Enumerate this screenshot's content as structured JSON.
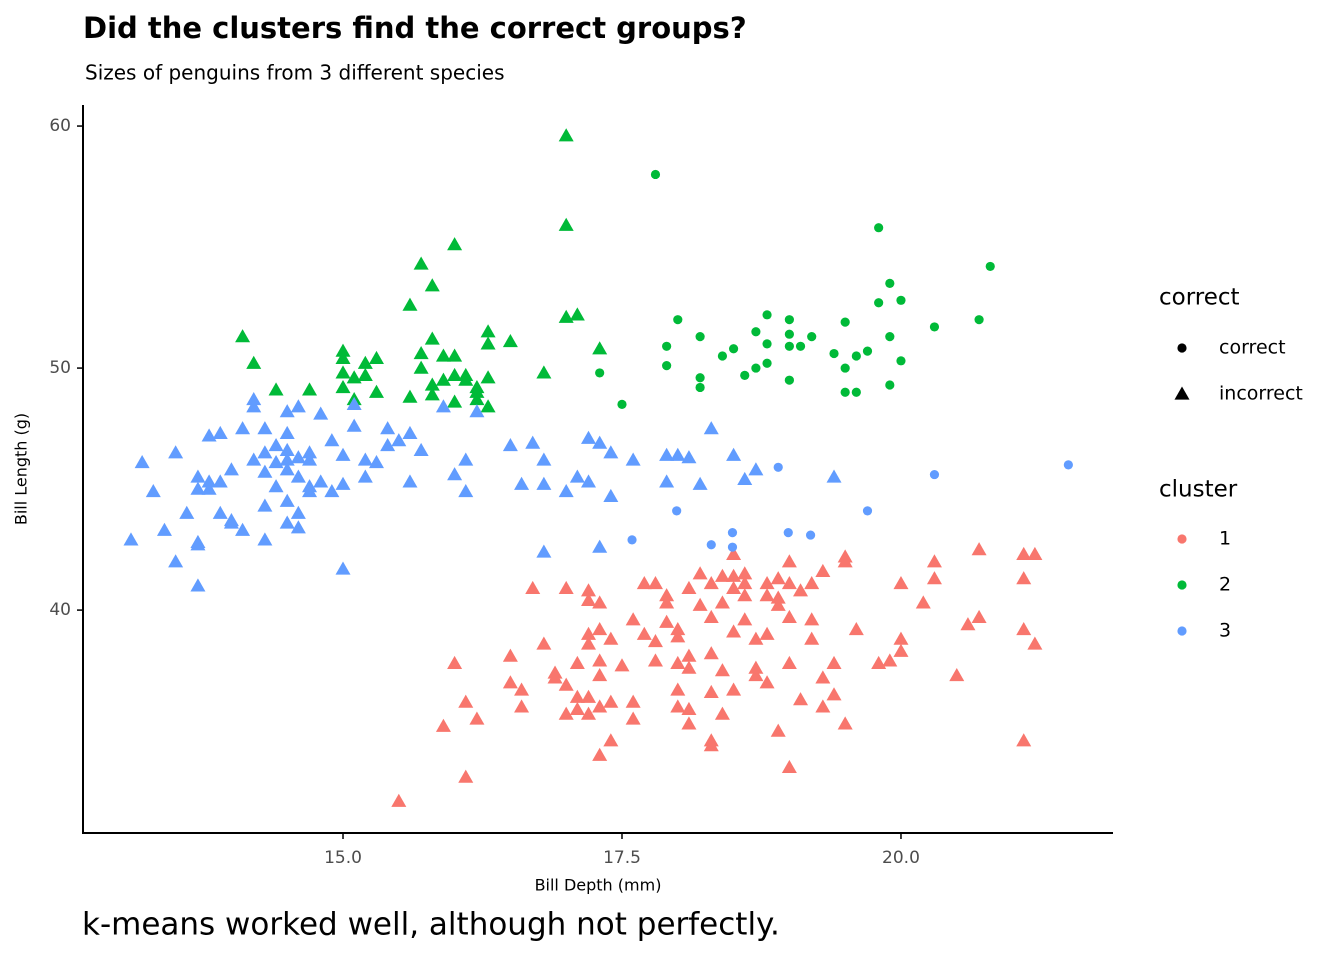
{
  "chart_data": {
    "type": "scatter",
    "title": "Did the clusters find the correct groups?",
    "subtitle": "Sizes of penguins from 3 different species",
    "x_label": "Bill Depth (mm)",
    "y_label": "Bill Length (g)",
    "caption": "k-means worked well, although not perfectly.",
    "xlim": [
      12.67,
      21.9
    ],
    "ylim": [
      30.79,
      60.87
    ],
    "xticks": [
      {
        "value": 15,
        "label": "15.0"
      },
      {
        "value": 17.5,
        "label": "17.5"
      },
      {
        "value": 20,
        "label": "20.0"
      }
    ],
    "yticks": [
      40,
      50,
      60
    ],
    "legends": [
      {
        "title": "correct",
        "items": [
          {
            "label": "correct",
            "shape": "circle"
          },
          {
            "label": "incorrect",
            "shape": "triangle"
          }
        ]
      },
      {
        "title": "cluster",
        "items": [
          {
            "label": "1",
            "color": "#F8766D"
          },
          {
            "label": "2",
            "color": "#00BA38"
          },
          {
            "label": "3",
            "color": "#619CFF"
          }
        ]
      }
    ],
    "series": [
      {
        "color": "#F8766D",
        "shape": "triangle",
        "x": [
          15.5,
          15.9,
          16.0,
          16.1,
          16.1,
          16.2,
          16.5,
          16.5,
          16.6,
          16.6,
          16.7,
          16.8,
          16.9,
          16.9,
          17.0,
          17.0,
          17.0,
          17.1,
          17.1,
          17.1,
          17.2,
          17.2,
          17.2,
          17.2,
          17.2,
          17.2,
          17.3,
          17.3,
          17.3,
          17.3,
          17.3,
          17.3,
          17.4,
          17.4,
          17.4,
          17.5,
          17.6,
          17.6,
          17.6,
          17.7,
          17.7,
          17.8,
          17.8,
          17.8,
          17.9,
          17.9,
          17.9,
          18.0,
          18.0,
          18.0,
          18.0,
          18.0,
          18.1,
          18.1,
          18.1,
          18.1,
          18.1,
          18.2,
          18.2,
          18.3,
          18.3,
          18.3,
          18.3,
          18.3,
          18.3,
          18.4,
          18.4,
          18.4,
          18.4,
          18.5,
          18.5,
          18.5,
          18.5,
          18.6,
          18.6,
          18.6,
          18.6,
          18.7,
          18.7,
          18.7,
          18.8,
          18.8,
          18.8,
          18.8,
          18.9,
          18.9,
          18.9,
          18.9,
          19.0,
          19.0,
          19.0,
          19.0,
          19.1,
          19.1,
          19.2,
          19.2,
          19.2,
          19.3,
          19.3,
          19.3,
          19.4,
          19.4,
          19.5,
          19.5,
          19.6,
          19.8,
          19.9,
          20.0,
          20.0,
          20.0,
          20.2,
          20.3,
          20.5,
          20.6,
          20.7,
          20.7,
          21.1,
          21.1,
          21.1,
          21.1,
          21.2,
          21.2,
          19.5,
          20.3,
          19.0,
          18.5
        ],
        "values": [
          32.1,
          35.2,
          37.8,
          33.1,
          36.2,
          35.5,
          38.1,
          37.0,
          36.7,
          36.0,
          40.9,
          38.6,
          37.4,
          37.2,
          36.9,
          40.9,
          35.7,
          35.9,
          36.4,
          37.8,
          38.6,
          39.0,
          40.4,
          40.8,
          36.4,
          35.7,
          37.9,
          39.2,
          40.3,
          37.3,
          36.0,
          34.0,
          34.6,
          36.2,
          38.8,
          37.7,
          39.6,
          36.2,
          35.5,
          39.0,
          41.1,
          41.1,
          38.7,
          37.9,
          40.6,
          40.3,
          39.5,
          38.9,
          39.2,
          37.8,
          36.7,
          36.0,
          35.9,
          35.3,
          37.6,
          38.1,
          40.9,
          41.5,
          40.2,
          39.7,
          41.1,
          38.2,
          36.6,
          34.6,
          34.4,
          41.4,
          40.3,
          37.5,
          35.7,
          41.4,
          40.9,
          39.1,
          36.7,
          41.5,
          41.1,
          40.6,
          39.6,
          38.8,
          37.3,
          37.6,
          41.1,
          40.6,
          39.0,
          37.0,
          40.2,
          41.3,
          40.5,
          35.0,
          39.7,
          41.1,
          37.8,
          33.5,
          40.8,
          36.3,
          41.1,
          39.6,
          38.8,
          41.6,
          37.2,
          36.0,
          37.8,
          36.5,
          42.2,
          35.3,
          39.2,
          37.8,
          37.9,
          41.1,
          38.8,
          38.3,
          40.3,
          41.3,
          37.3,
          39.4,
          42.5,
          39.7,
          42.3,
          41.3,
          39.2,
          34.6,
          38.6,
          42.3,
          42.0,
          42.0,
          42.0,
          42.3
        ]
      },
      {
        "color": "#00BA38",
        "shape": "circle",
        "x": [
          17.3,
          17.5,
          17.8,
          17.9,
          17.9,
          18.0,
          18.2,
          18.2,
          18.2,
          18.4,
          18.5,
          18.6,
          18.7,
          18.7,
          18.8,
          18.8,
          18.8,
          19.0,
          19.0,
          19.0,
          19.0,
          19.1,
          19.2,
          19.4,
          19.5,
          19.5,
          19.5,
          19.6,
          19.6,
          19.7,
          19.8,
          19.8,
          19.9,
          19.9,
          19.9,
          20.0,
          20.0,
          20.3,
          20.7,
          20.8
        ],
        "values": [
          49.8,
          48.5,
          58.0,
          50.9,
          50.1,
          52.0,
          51.3,
          49.6,
          49.2,
          50.5,
          50.8,
          49.7,
          51.5,
          50.0,
          52.2,
          51.0,
          50.2,
          52.0,
          51.4,
          50.9,
          49.5,
          50.9,
          51.3,
          50.6,
          51.9,
          50.0,
          49.0,
          50.5,
          49.0,
          50.7,
          55.8,
          52.7,
          53.5,
          51.3,
          49.3,
          52.8,
          50.3,
          51.7,
          52.0,
          54.2
        ]
      },
      {
        "color": "#00BA38",
        "shape": "triangle",
        "x": [
          14.1,
          14.2,
          14.4,
          14.7,
          15.0,
          15.0,
          15.0,
          15.0,
          15.1,
          15.1,
          15.2,
          15.2,
          15.3,
          15.3,
          15.6,
          15.7,
          15.8,
          15.8,
          15.7,
          15.8,
          15.9,
          16.0,
          16.0,
          16.0,
          16.1,
          16.1,
          16.2,
          16.2,
          16.2,
          16.0,
          16.3,
          16.3,
          16.3,
          16.3,
          16.5,
          16.8,
          17.0,
          17.0,
          17.0,
          17.1,
          17.3,
          15.9,
          15.7,
          15.6,
          15.8
        ],
        "values": [
          51.3,
          50.2,
          49.1,
          49.1,
          50.7,
          50.4,
          49.8,
          49.2,
          49.6,
          48.7,
          50.2,
          49.7,
          50.4,
          49.0,
          52.6,
          54.3,
          53.4,
          51.2,
          50.0,
          49.3,
          49.5,
          55.1,
          50.5,
          49.7,
          49.5,
          49.7,
          49.2,
          49.0,
          48.7,
          48.6,
          51.5,
          51.0,
          49.6,
          48.4,
          51.1,
          49.8,
          59.6,
          55.9,
          52.1,
          52.2,
          50.8,
          50.5,
          50.6,
          48.8,
          48.9
        ]
      },
      {
        "color": "#619CFF",
        "shape": "circle",
        "x": [
          17.59,
          17.99,
          18.3,
          18.49,
          18.49,
          18.9,
          18.99,
          19.19,
          19.7,
          20.3,
          21.5
        ],
        "values": [
          42.9,
          44.1,
          42.7,
          43.2,
          42.6,
          45.9,
          43.2,
          43.1,
          44.1,
          45.6,
          46.0
        ]
      },
      {
        "color": "#619CFF",
        "shape": "triangle",
        "x": [
          13.1,
          13.2,
          13.3,
          13.4,
          13.5,
          13.5,
          13.6,
          13.7,
          13.7,
          13.7,
          13.7,
          13.7,
          13.8,
          13.8,
          13.8,
          13.9,
          13.9,
          13.9,
          14.0,
          14.0,
          14.0,
          14.1,
          14.1,
          14.2,
          14.2,
          14.2,
          14.3,
          14.3,
          14.3,
          14.3,
          14.3,
          14.4,
          14.4,
          14.4,
          14.5,
          14.5,
          14.5,
          14.5,
          14.5,
          14.5,
          14.5,
          14.6,
          14.6,
          14.6,
          14.6,
          14.6,
          14.7,
          14.7,
          14.7,
          14.7,
          14.8,
          14.8,
          14.9,
          14.9,
          15.0,
          15.0,
          15.0,
          15.1,
          15.2,
          15.2,
          15.3,
          15.4,
          15.4,
          15.5,
          15.6,
          15.6,
          15.7,
          15.9,
          16.0,
          16.1,
          16.1,
          16.5,
          16.6,
          16.7,
          16.8,
          16.8,
          16.8,
          17.0,
          17.1,
          17.2,
          17.3,
          17.3,
          17.4,
          17.4,
          17.6,
          17.9,
          17.9,
          18.0,
          18.1,
          18.2,
          18.3,
          18.5,
          18.6,
          18.7,
          19.4,
          16.2,
          17.2,
          15.1
        ],
        "values": [
          42.9,
          46.1,
          44.9,
          43.3,
          46.5,
          42.0,
          44.0,
          45.5,
          45.0,
          42.7,
          42.8,
          41.0,
          45.3,
          45.0,
          47.2,
          47.3,
          45.3,
          44.0,
          43.7,
          43.6,
          45.8,
          47.5,
          43.3,
          46.2,
          48.7,
          48.4,
          47.5,
          46.5,
          45.7,
          44.3,
          42.9,
          46.8,
          46.1,
          45.1,
          48.2,
          47.3,
          46.6,
          46.2,
          45.8,
          44.5,
          43.6,
          48.4,
          46.3,
          45.5,
          44.0,
          43.4,
          46.5,
          46.2,
          45.1,
          44.9,
          48.1,
          45.3,
          47.0,
          44.9,
          46.4,
          45.2,
          41.7,
          47.6,
          46.2,
          45.5,
          46.1,
          47.5,
          46.8,
          47.0,
          47.3,
          45.3,
          46.6,
          48.4,
          45.6,
          44.9,
          46.2,
          46.8,
          45.2,
          46.9,
          45.2,
          46.2,
          42.4,
          44.9,
          45.5,
          45.3,
          46.9,
          42.6,
          46.5,
          44.7,
          46.2,
          45.3,
          46.4,
          46.4,
          46.3,
          45.2,
          47.5,
          46.4,
          45.4,
          45.8,
          45.5,
          48.2,
          47.1,
          48.5
        ]
      }
    ]
  }
}
